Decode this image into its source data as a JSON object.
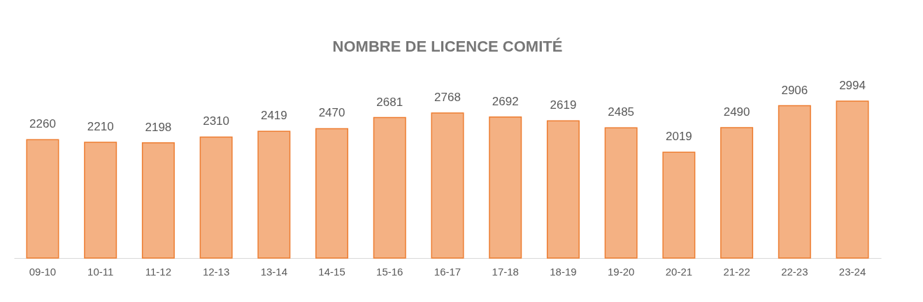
{
  "chart_data": {
    "type": "bar",
    "title": "NOMBRE DE LICENCE COMITÉ",
    "categories": [
      "09-10",
      "10-11",
      "11-12",
      "12-13",
      "13-14",
      "14-15",
      "15-16",
      "16-17",
      "17-18",
      "18-19",
      "19-20",
      "20-21",
      "21-22",
      "22-23",
      "23-24"
    ],
    "values": [
      2260,
      2210,
      2198,
      2310,
      2419,
      2470,
      2681,
      2768,
      2692,
      2619,
      2485,
      2019,
      2490,
      2906,
      2994
    ],
    "color": "#f4b183",
    "data_labels": true,
    "grid": false
  }
}
